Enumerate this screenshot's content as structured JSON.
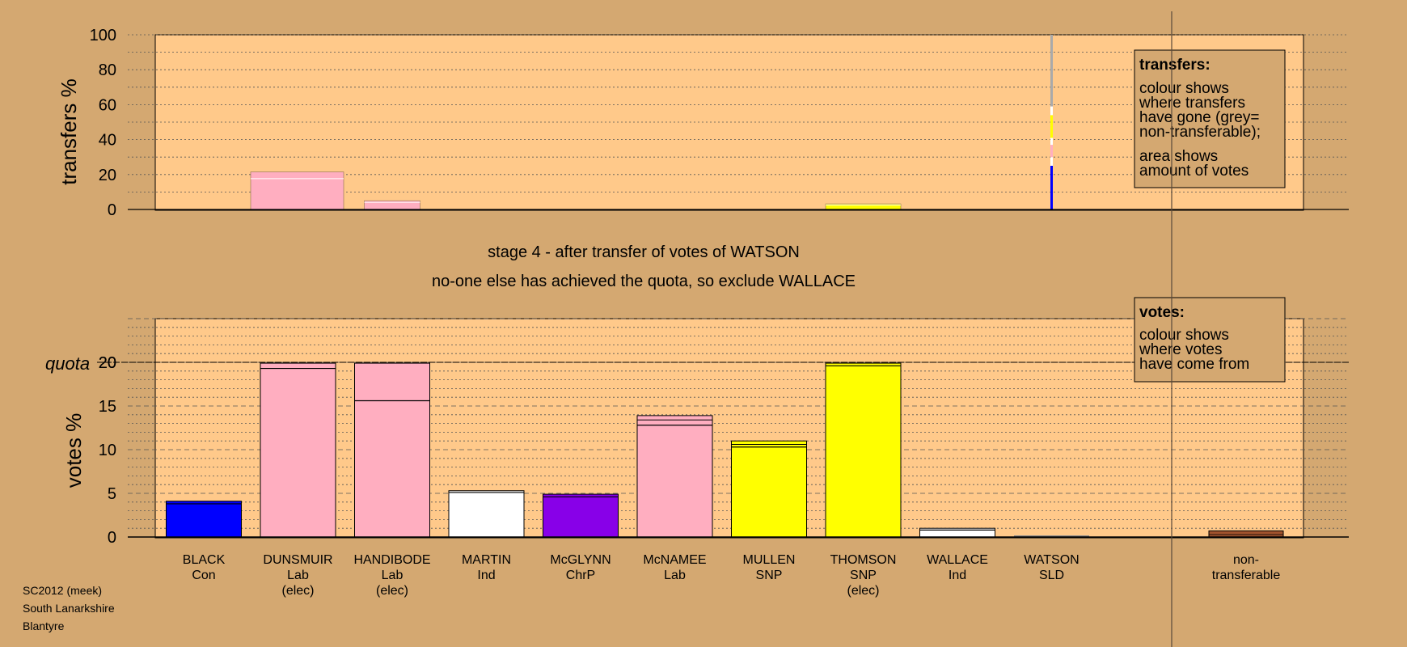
{
  "colors": {
    "background": "#d4a871",
    "plot_area": "#ffc98a",
    "BLACK": "#0000ff",
    "DUNSMUIR": "#ffaec0",
    "HANDIBODE": "#ffaec0",
    "MARTIN": "#ffffff",
    "McGLYNN": "#8800e8",
    "McNAMEE": "#ffaec0",
    "MULLEN": "#ffff00",
    "THOMSON": "#ffff00",
    "WALLACE": "#ffffff",
    "WATSON": "#dcdcdc",
    "non_transferable": "#a0522d",
    "grey_nontransferable": "#aaaaaa"
  },
  "stage_title": "stage 4 - after transfer of votes of WATSON",
  "stage_subtitle": "no-one else has achieved the quota, so exclude WALLACE",
  "footer": [
    "SC2012 (meek)",
    "South Lanarkshire",
    "Blantyre"
  ],
  "legend_transfers": {
    "heading": "transfers:",
    "lines1": [
      "colour shows",
      "where transfers",
      "have gone (grey=",
      "non-transferable);"
    ],
    "lines2": [
      "area shows",
      "amount of votes"
    ]
  },
  "legend_votes": {
    "heading": "votes:",
    "lines": [
      "colour shows",
      "where votes",
      "have come from"
    ]
  },
  "candidates": [
    {
      "name": "BLACK",
      "party": "Con",
      "note": ""
    },
    {
      "name": "DUNSMUIR",
      "party": "Lab",
      "note": "(elec)"
    },
    {
      "name": "HANDIBODE",
      "party": "Lab",
      "note": "(elec)"
    },
    {
      "name": "MARTIN",
      "party": "Ind",
      "note": ""
    },
    {
      "name": "McGLYNN",
      "party": "ChrP",
      "note": ""
    },
    {
      "name": "McNAMEE",
      "party": "Lab",
      "note": ""
    },
    {
      "name": "MULLEN",
      "party": "SNP",
      "note": ""
    },
    {
      "name": "THOMSON",
      "party": "SNP",
      "note": "(elec)"
    },
    {
      "name": "WALLACE",
      "party": "Ind",
      "note": ""
    },
    {
      "name": "WATSON",
      "party": "SLD",
      "note": ""
    }
  ],
  "nontransferable_label": [
    "non-",
    "transferable"
  ],
  "chart_data": [
    {
      "type": "bar",
      "ylabel": "transfers %",
      "ylim": [
        0,
        100
      ],
      "yticks": [
        0,
        20,
        40,
        60,
        80,
        100
      ],
      "categories": [
        "BLACK",
        "DUNSMUIR",
        "HANDIBODE",
        "MARTIN",
        "McGLYNN",
        "McNAMEE",
        "MULLEN",
        "THOMSON",
        "WALLACE",
        "WATSON"
      ],
      "transfers_to": [
        0,
        21.5,
        5.0,
        0,
        0,
        0,
        0,
        3.2,
        0,
        0
      ],
      "source": {
        "candidate": "WATSON",
        "segments": [
          {
            "color": "#0000ff",
            "from": 0,
            "to": 25
          },
          {
            "color": "#ffffff",
            "from": 25,
            "to": 30
          },
          {
            "color": "#ffaec0",
            "from": 30,
            "to": 37
          },
          {
            "color": "#ffffff",
            "from": 37,
            "to": 41
          },
          {
            "color": "#ffff00",
            "from": 41,
            "to": 48
          },
          {
            "color": "#ffff00",
            "from": 48,
            "to": 54
          },
          {
            "color": "#ffffff",
            "from": 54,
            "to": 59
          },
          {
            "color": "#aaaaaa",
            "from": 59,
            "to": 100
          }
        ]
      }
    },
    {
      "type": "bar",
      "ylabel": "votes %",
      "ylim": [
        0,
        25
      ],
      "yticks": [
        0,
        5,
        10,
        15,
        20
      ],
      "quota": 20,
      "quota_label": "quota",
      "categories": [
        "BLACK",
        "DUNSMUIR",
        "HANDIBODE",
        "MARTIN",
        "McGLYNN",
        "McNAMEE",
        "MULLEN",
        "THOMSON",
        "WALLACE",
        "WATSON"
      ],
      "values": [
        4.1,
        19.9,
        19.9,
        5.3,
        4.9,
        13.9,
        11.0,
        19.9,
        1.0,
        0.05
      ],
      "first_pref": [
        3.8,
        19.3,
        15.6,
        5.1,
        4.6,
        12.8,
        10.3,
        19.6,
        0.8,
        0
      ],
      "segment_marks": [
        [],
        [],
        [],
        [],
        [],
        [
          13.4
        ],
        [
          10.6
        ],
        [],
        [],
        []
      ],
      "nontransferable": 0.7
    }
  ]
}
